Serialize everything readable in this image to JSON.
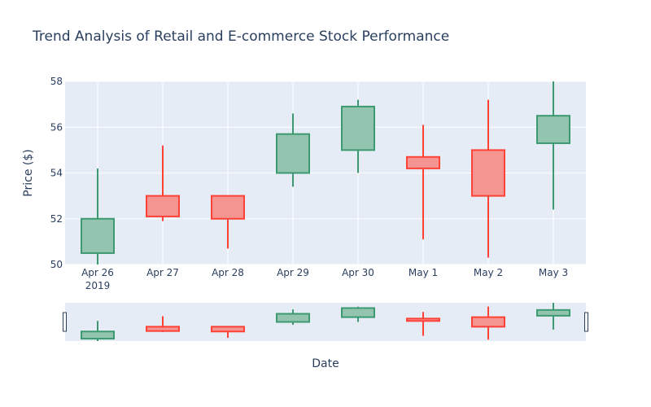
{
  "colors": {
    "plot_bg": "#e5ecf6",
    "grid": "#ffffff",
    "text": "#2a3f5f",
    "increasing": "#3d9970",
    "increasing_fill": "#93c4b0",
    "decreasing": "#ff4136",
    "decreasing_fill": "#f49592"
  },
  "chart_data": {
    "type": "candlestick",
    "title": "Trend Analysis of Retail and E-commerce Stock Performance",
    "xlabel": "Date",
    "ylabel": "Price ($)",
    "ylim": [
      50,
      58
    ],
    "yticks": [
      "50",
      "52",
      "54",
      "56",
      "58"
    ],
    "x_tick_labels": [
      "Apr 26",
      "Apr 27",
      "Apr 28",
      "Apr 29",
      "Apr 30",
      "May 1",
      "May 2",
      "May 3"
    ],
    "x_year_label": "2019",
    "grid": true,
    "rangeslider": true,
    "candles": [
      {
        "date": "2019-04-26",
        "open": 50.5,
        "high": 54.2,
        "low": 50.0,
        "close": 52.0
      },
      {
        "date": "2019-04-27",
        "open": 53.0,
        "high": 55.2,
        "low": 51.9,
        "close": 52.1
      },
      {
        "date": "2019-04-28",
        "open": 53.0,
        "high": 53.0,
        "low": 50.7,
        "close": 52.0
      },
      {
        "date": "2019-04-29",
        "open": 54.0,
        "high": 56.6,
        "low": 53.4,
        "close": 55.7
      },
      {
        "date": "2019-04-30",
        "open": 55.0,
        "high": 57.2,
        "low": 54.0,
        "close": 56.9
      },
      {
        "date": "2019-05-01",
        "open": 54.7,
        "high": 56.1,
        "low": 51.1,
        "close": 54.2
      },
      {
        "date": "2019-05-02",
        "open": 55.0,
        "high": 57.2,
        "low": 50.3,
        "close": 53.0
      },
      {
        "date": "2019-05-03",
        "open": 55.3,
        "high": 58.0,
        "low": 52.4,
        "close": 56.5
      }
    ]
  }
}
